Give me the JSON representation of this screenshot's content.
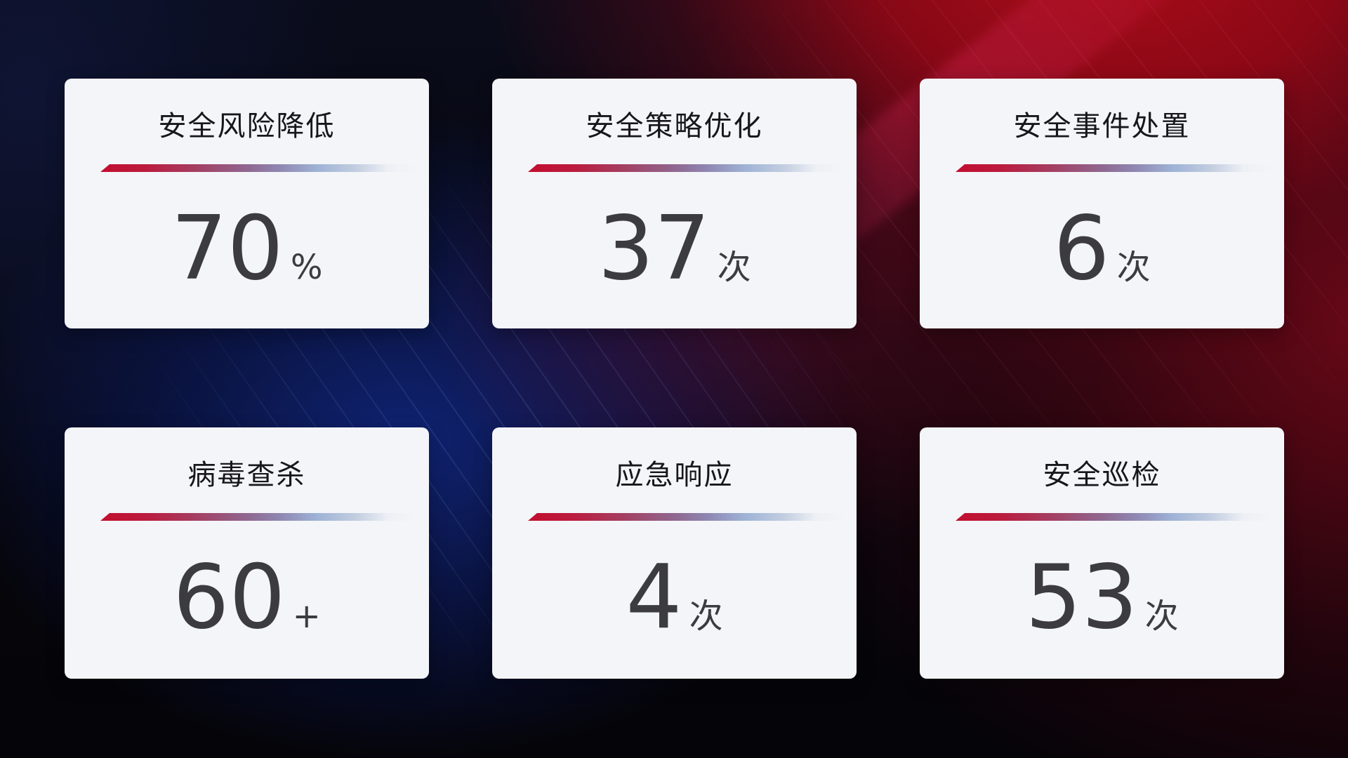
{
  "theme": {
    "card_bg": "#f4f5f8",
    "title_color": "#17171b",
    "value_color": "#3b3b40",
    "accent_line_start": "#c20e2f",
    "accent_line_mid": "#8f86b2",
    "accent_line_end": "#c2cde0",
    "bg_navy": "#102478",
    "bg_red": "#9e0a14",
    "bg_black": "#06060d"
  },
  "cards": [
    {
      "title": "安全风险降低",
      "value": "70",
      "unit": "%"
    },
    {
      "title": "安全策略优化",
      "value": "37",
      "unit": "次"
    },
    {
      "title": "安全事件处置",
      "value": "6",
      "unit": "次"
    },
    {
      "title": "病毒查杀",
      "value": "60",
      "unit": "+"
    },
    {
      "title": "应急响应",
      "value": "4",
      "unit": "次"
    },
    {
      "title": "安全巡检",
      "value": "53",
      "unit": "次"
    }
  ]
}
